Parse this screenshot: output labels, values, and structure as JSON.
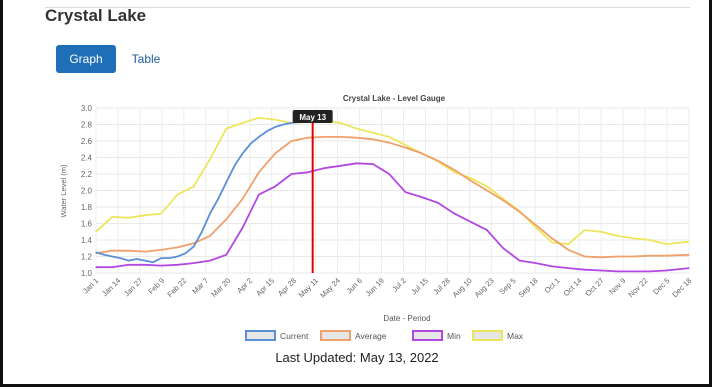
{
  "page": {
    "title": "Crystal Lake",
    "tabs": [
      {
        "label": "Graph",
        "active": true
      },
      {
        "label": "Table",
        "active": false
      }
    ],
    "last_updated": "Last Updated: May 13, 2022"
  },
  "colors": {
    "current": "#5b8fd6",
    "average": "#f0a06a",
    "min": "#b248e0",
    "max": "#ece65e",
    "marker": "#e00000",
    "tab_active": "#1f6fb8"
  },
  "chart_data": {
    "type": "line",
    "title": "Crystal Lake - Level Gauge",
    "xlabel": "Date - Period",
    "ylabel": "Water Level (m)",
    "ylim": [
      1.0,
      3.0
    ],
    "yticks": [
      "1.0",
      "1.2",
      "1.4",
      "1.6",
      "1.8",
      "2.0",
      "2.2",
      "2.4",
      "2.6",
      "2.8",
      "3.0"
    ],
    "xticks": [
      "Jan 1",
      "Jan 14",
      "Jan 27",
      "Feb 9",
      "Feb 22",
      "Mar 7",
      "Mar 20",
      "Apr 2",
      "Apr 15",
      "Apr 28",
      "May 11",
      "May 24",
      "Jun 6",
      "Jun 19",
      "Jul 2",
      "Jul 15",
      "Jul 28",
      "Aug 10",
      "Aug 23",
      "Sep 5",
      "Sep 18",
      "Oct 1",
      "Oct 14",
      "Oct 27",
      "Nov 9",
      "Nov 22",
      "Dec 5",
      "Dec 18"
    ],
    "grid": true,
    "legend_position": "bottom",
    "marker_label": "May 13",
    "series": [
      {
        "name": "Current",
        "key": "current",
        "x": [
          0,
          5,
          10,
          15,
          20,
          25,
          30,
          35,
          40,
          45,
          50,
          55,
          60,
          65,
          70,
          75,
          80,
          85,
          90,
          95,
          100,
          105,
          110,
          115,
          120,
          125,
          130,
          133
        ],
        "values": [
          1.25,
          1.22,
          1.2,
          1.18,
          1.15,
          1.17,
          1.15,
          1.13,
          1.18,
          1.18,
          1.2,
          1.24,
          1.32,
          1.5,
          1.72,
          1.9,
          2.1,
          2.3,
          2.45,
          2.57,
          2.65,
          2.72,
          2.77,
          2.8,
          2.82,
          2.83,
          2.85,
          2.87
        ]
      },
      {
        "name": "Average",
        "key": "average",
        "x": [
          0,
          10,
          20,
          30,
          40,
          50,
          60,
          70,
          80,
          90,
          100,
          110,
          120,
          130,
          140,
          150,
          160,
          170,
          180,
          190,
          200,
          210,
          220,
          230,
          240,
          250,
          260,
          270,
          280,
          290,
          300,
          310,
          320,
          330,
          340,
          350,
          364
        ],
        "values": [
          1.24,
          1.27,
          1.27,
          1.26,
          1.28,
          1.31,
          1.36,
          1.45,
          1.65,
          1.9,
          2.22,
          2.45,
          2.6,
          2.64,
          2.65,
          2.65,
          2.64,
          2.62,
          2.58,
          2.52,
          2.45,
          2.36,
          2.25,
          2.12,
          2.0,
          1.88,
          1.74,
          1.58,
          1.42,
          1.28,
          1.2,
          1.19,
          1.2,
          1.2,
          1.21,
          1.21,
          1.22
        ]
      },
      {
        "name": "Min",
        "key": "min",
        "x": [
          0,
          10,
          20,
          30,
          40,
          50,
          60,
          70,
          80,
          90,
          100,
          110,
          120,
          130,
          140,
          150,
          160,
          170,
          180,
          190,
          200,
          210,
          220,
          230,
          240,
          250,
          260,
          270,
          280,
          290,
          300,
          310,
          320,
          330,
          340,
          350,
          364
        ],
        "values": [
          1.07,
          1.07,
          1.1,
          1.1,
          1.09,
          1.1,
          1.12,
          1.15,
          1.22,
          1.55,
          1.95,
          2.05,
          2.2,
          2.22,
          2.27,
          2.3,
          2.33,
          2.32,
          2.2,
          1.98,
          1.92,
          1.85,
          1.72,
          1.62,
          1.52,
          1.3,
          1.15,
          1.12,
          1.08,
          1.06,
          1.04,
          1.03,
          1.02,
          1.02,
          1.02,
          1.03,
          1.06
        ]
      },
      {
        "name": "Max",
        "key": "max",
        "x": [
          0,
          10,
          20,
          30,
          40,
          50,
          60,
          70,
          80,
          90,
          100,
          110,
          120,
          130,
          140,
          150,
          160,
          170,
          180,
          190,
          200,
          210,
          220,
          230,
          240,
          250,
          260,
          270,
          280,
          290,
          300,
          310,
          320,
          330,
          340,
          350,
          364
        ],
        "values": [
          1.5,
          1.68,
          1.67,
          1.7,
          1.72,
          1.95,
          2.05,
          2.38,
          2.75,
          2.82,
          2.88,
          2.86,
          2.82,
          2.83,
          2.84,
          2.82,
          2.75,
          2.7,
          2.65,
          2.55,
          2.45,
          2.35,
          2.22,
          2.15,
          2.05,
          1.9,
          1.75,
          1.55,
          1.37,
          1.35,
          1.52,
          1.5,
          1.45,
          1.42,
          1.4,
          1.35,
          1.38
        ]
      }
    ]
  }
}
